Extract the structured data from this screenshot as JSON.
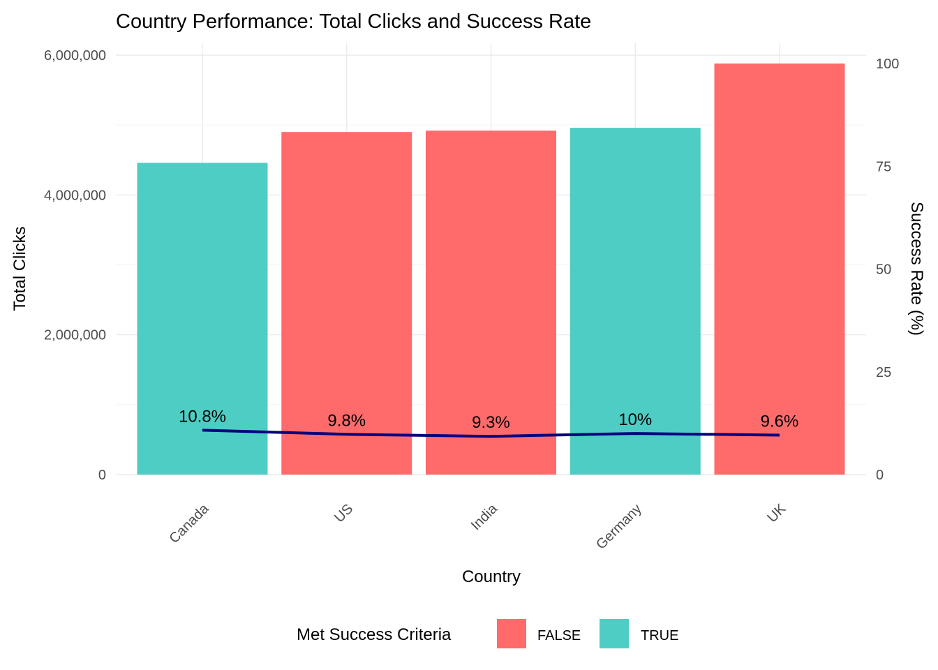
{
  "chart_data": {
    "type": "bar",
    "title": "Country Performance: Total Clicks and Success Rate",
    "xlabel": "Country",
    "ylabel": "Total Clicks",
    "y2label": "Success Rate (%)",
    "categories": [
      "Canada",
      "US",
      "India",
      "Germany",
      "UK"
    ],
    "values": [
      4460000,
      4900000,
      4920000,
      4960000,
      5880000
    ],
    "met_success_criteria": [
      "TRUE",
      "FALSE",
      "FALSE",
      "TRUE",
      "FALSE"
    ],
    "ylim": [
      0,
      6000000
    ],
    "yticks": [
      "0",
      "2,000,000",
      "4,000,000",
      "6,000,000"
    ],
    "y2lim": [
      0,
      100
    ],
    "y2ticks": [
      "0",
      "25",
      "50",
      "75",
      "100"
    ],
    "line_series": {
      "values": [
        10.8,
        9.8,
        9.3,
        10.0,
        9.6
      ],
      "labels": [
        "10.8%",
        "9.8%",
        "9.3%",
        "10%",
        "9.6%"
      ],
      "color": "#000080"
    },
    "legend": {
      "title": "Met Success Criteria",
      "position": "bottom",
      "items": [
        {
          "label": "FALSE",
          "color": "#FF6B6B"
        },
        {
          "label": "TRUE",
          "color": "#4ECDC4"
        }
      ]
    },
    "grid": true
  }
}
